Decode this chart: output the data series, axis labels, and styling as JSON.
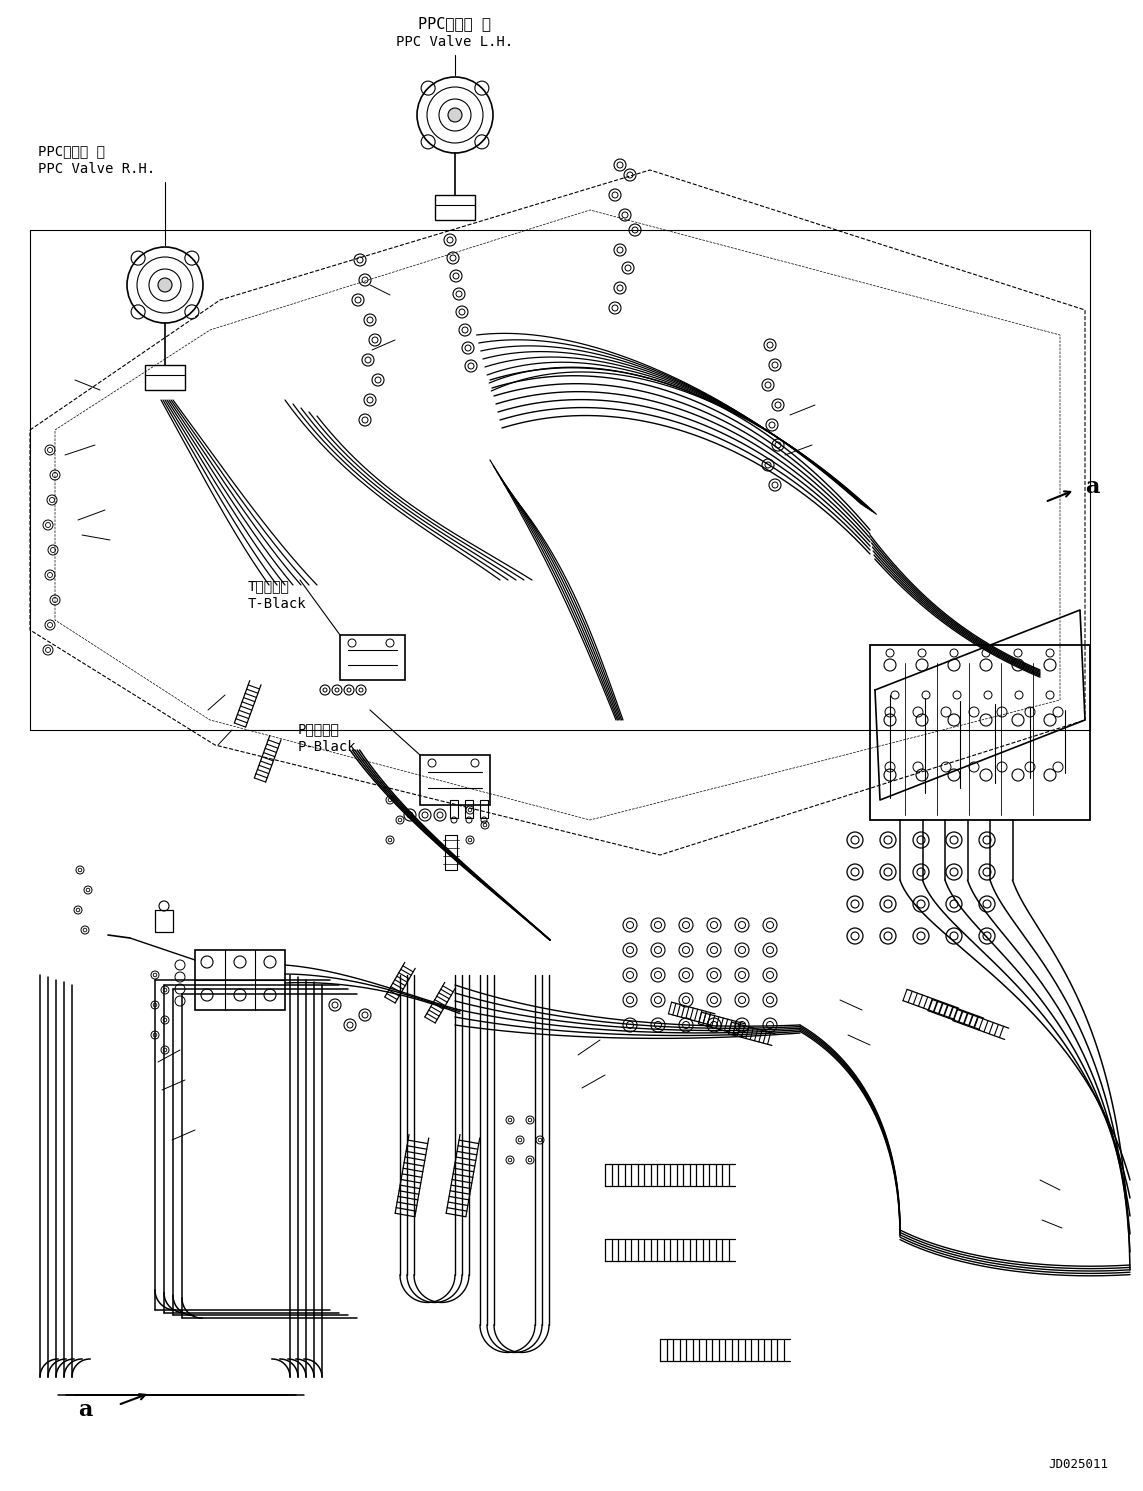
{
  "bg_color": "#ffffff",
  "lc": "#000000",
  "figsize": [
    11.43,
    14.91
  ],
  "dpi": 100,
  "label_lh_line1": "PPCバルブ 左",
  "label_lh_line2": "PPC Valve L.H.",
  "label_rh_line1": "PPCバルブ 右",
  "label_rh_line2": "PPC Valve R.H.",
  "label_t_line1": "Tブロック",
  "label_t_line2": "T-Black",
  "label_p_line1": "Pブロック",
  "label_p_line2": "P-Black",
  "label_a": "a",
  "watermark": "JD025011"
}
